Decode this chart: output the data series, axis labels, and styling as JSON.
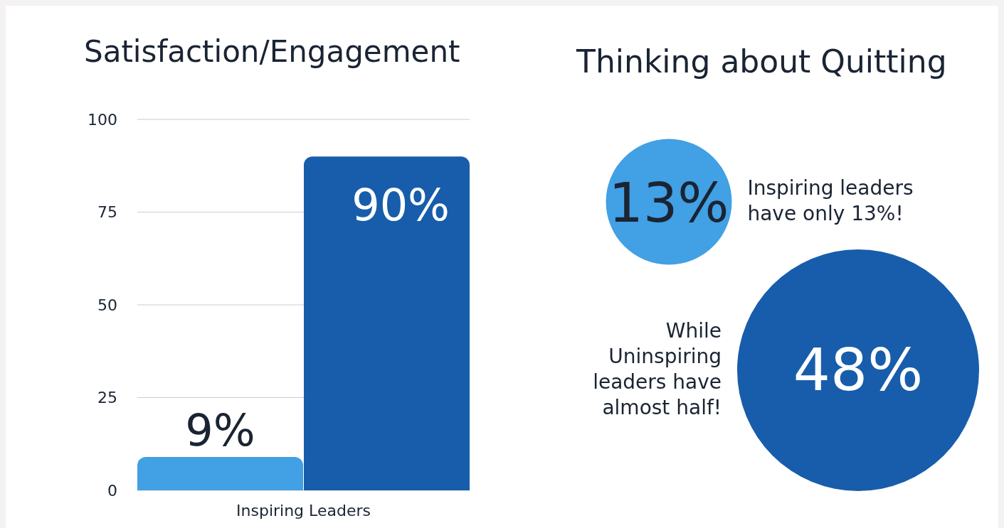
{
  "chart_data": [
    {
      "type": "bar",
      "title": "Satisfaction/Engagement",
      "categories": [
        "Inspiring Leaders"
      ],
      "series": [
        {
          "color": "#42a0e4",
          "values": [
            9
          ],
          "value_labels": [
            "9%"
          ]
        },
        {
          "color": "#175dab",
          "values": [
            90
          ],
          "value_labels": [
            "90%"
          ]
        }
      ],
      "ylim": [
        0,
        100
      ],
      "yticks": [
        0,
        25,
        50,
        75,
        100
      ],
      "grid": "y"
    },
    {
      "type": "other",
      "title": "Thinking about Quitting",
      "values": [
        13,
        48
      ],
      "value_labels": [
        "13%",
        "48%"
      ],
      "colors": [
        "#42a0e4",
        "#175dab"
      ],
      "annotations": [
        "Inspiring leaders have only 13%!",
        "While Uninspiring leaders have almost half!"
      ]
    }
  ]
}
